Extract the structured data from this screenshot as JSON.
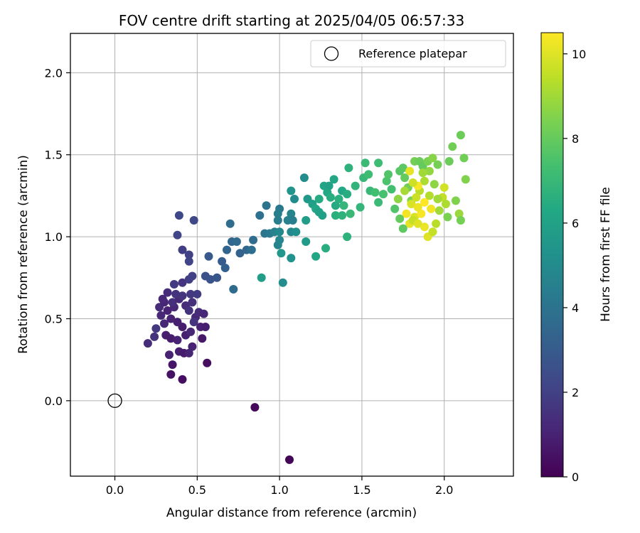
{
  "chart_data": {
    "type": "scatter",
    "title": "FOV centre drift starting at 2025/04/05 06:57:33",
    "xlabel": "Angular distance from reference (arcmin)",
    "ylabel": "Rotation from reference (arcmin)",
    "xlim": [
      -0.27,
      2.42
    ],
    "ylim": [
      -0.46,
      2.24
    ],
    "x_ticks": [
      0.0,
      0.5,
      1.0,
      1.5,
      2.0
    ],
    "x_tick_labels": [
      "0.0",
      "0.5",
      "1.0",
      "1.5",
      "2.0"
    ],
    "y_ticks": [
      0.0,
      0.5,
      1.0,
      1.5,
      2.0
    ],
    "y_tick_labels": [
      "0.0",
      "0.5",
      "1.0",
      "1.5",
      "2.0"
    ],
    "grid": true,
    "legend": {
      "placement": "top-right",
      "entries": [
        {
          "label": "Reference platepar",
          "marker": "open-circle"
        }
      ]
    },
    "reference_point": {
      "x": 0.0,
      "y": 0.0
    },
    "colorbar": {
      "label": "Hours from first FF file",
      "colormap": "viridis",
      "range": [
        0,
        10.5
      ],
      "ticks": [
        0,
        2,
        4,
        6,
        8,
        10
      ],
      "tick_labels": [
        "0",
        "2",
        "4",
        "6",
        "8",
        "10"
      ]
    },
    "points": [
      [
        1.06,
        -0.36,
        0.1
      ],
      [
        0.85,
        -0.04,
        0.2
      ],
      [
        0.41,
        0.13,
        0.4
      ],
      [
        0.34,
        0.16,
        0.5
      ],
      [
        0.35,
        0.22,
        0.6
      ],
      [
        0.56,
        0.23,
        0.4
      ],
      [
        0.33,
        0.28,
        1.0
      ],
      [
        0.39,
        0.3,
        0.9
      ],
      [
        0.42,
        0.29,
        0.8
      ],
      [
        0.47,
        0.33,
        1.0
      ],
      [
        0.45,
        0.29,
        1.1
      ],
      [
        0.53,
        0.38,
        0.7
      ],
      [
        0.2,
        0.35,
        1.3
      ],
      [
        0.24,
        0.39,
        1.5
      ],
      [
        0.25,
        0.44,
        1.7
      ],
      [
        0.31,
        0.4,
        0.9
      ],
      [
        0.34,
        0.38,
        0.8
      ],
      [
        0.38,
        0.37,
        1.0
      ],
      [
        0.43,
        0.4,
        0.9
      ],
      [
        0.46,
        0.42,
        1.1
      ],
      [
        0.41,
        0.45,
        0.8
      ],
      [
        0.38,
        0.48,
        0.9
      ],
      [
        0.34,
        0.5,
        1.0
      ],
      [
        0.3,
        0.47,
        1.1
      ],
      [
        0.28,
        0.52,
        1.2
      ],
      [
        0.32,
        0.55,
        1.0
      ],
      [
        0.36,
        0.57,
        1.2
      ],
      [
        0.27,
        0.57,
        1.3
      ],
      [
        0.3,
        0.6,
        1.1
      ],
      [
        0.35,
        0.6,
        1.4
      ],
      [
        0.39,
        0.62,
        1.2
      ],
      [
        0.43,
        0.58,
        1.3
      ],
      [
        0.45,
        0.55,
        1.5
      ],
      [
        0.49,
        0.51,
        1.2
      ],
      [
        0.48,
        0.48,
        1.6
      ],
      [
        0.52,
        0.45,
        1.0
      ],
      [
        0.55,
        0.45,
        0.9
      ],
      [
        0.51,
        0.54,
        1.3
      ],
      [
        0.54,
        0.53,
        1.1
      ],
      [
        0.47,
        0.6,
        1.4
      ],
      [
        0.41,
        0.64,
        1.6
      ],
      [
        0.37,
        0.65,
        1.5
      ],
      [
        0.32,
        0.66,
        1.3
      ],
      [
        0.29,
        0.62,
        1.2
      ],
      [
        0.46,
        0.65,
        1.7
      ],
      [
        0.5,
        0.65,
        1.8
      ],
      [
        0.41,
        0.72,
        1.6
      ],
      [
        0.36,
        0.71,
        1.8
      ],
      [
        0.45,
        0.74,
        1.9
      ],
      [
        0.47,
        0.76,
        2.0
      ],
      [
        0.41,
        0.92,
        1.9
      ],
      [
        0.45,
        0.89,
        2.0
      ],
      [
        0.45,
        0.85,
        2.1
      ],
      [
        0.38,
        1.01,
        2.1
      ],
      [
        0.39,
        1.13,
        2.2
      ],
      [
        0.48,
        1.1,
        2.3
      ],
      [
        0.55,
        0.76,
        2.6
      ],
      [
        0.58,
        0.74,
        2.7
      ],
      [
        0.62,
        0.75,
        2.8
      ],
      [
        0.57,
        0.88,
        2.9
      ],
      [
        0.65,
        0.85,
        3.0
      ],
      [
        0.67,
        0.81,
        3.2
      ],
      [
        0.68,
        0.92,
        3.4
      ],
      [
        0.71,
        0.97,
        3.5
      ],
      [
        0.74,
        0.97,
        3.6
      ],
      [
        0.76,
        0.9,
        3.3
      ],
      [
        0.7,
        1.08,
        3.7
      ],
      [
        0.72,
        0.68,
        3.6
      ],
      [
        0.8,
        0.92,
        3.5
      ],
      [
        0.84,
        0.98,
        3.7
      ],
      [
        0.88,
        1.13,
        3.9
      ],
      [
        0.92,
        1.19,
        4.0
      ],
      [
        0.91,
        1.02,
        4.1
      ],
      [
        0.94,
        1.02,
        4.3
      ],
      [
        0.97,
        1.03,
        4.6
      ],
      [
        0.99,
        1.1,
        4.4
      ],
      [
        1.0,
        1.17,
        4.2
      ],
      [
        0.99,
        1.14,
        4.5
      ],
      [
        1.0,
        1.03,
        4.9
      ],
      [
        0.99,
        0.95,
        4.7
      ],
      [
        1.0,
        0.98,
        4.8
      ],
      [
        1.01,
        0.9,
        5.5
      ],
      [
        1.05,
        1.1,
        4.6
      ],
      [
        1.07,
        1.14,
        4.7
      ],
      [
        1.08,
        1.1,
        4.5
      ],
      [
        1.07,
        1.03,
        4.9
      ],
      [
        1.1,
        1.03,
        5.2
      ],
      [
        1.07,
        1.28,
        5.4
      ],
      [
        1.09,
        1.23,
        5.0
      ],
      [
        1.07,
        0.87,
        5.3
      ],
      [
        1.02,
        0.72,
        5.1
      ],
      [
        0.89,
        0.75,
        5.8
      ],
      [
        1.15,
        1.36,
        5.1
      ],
      [
        1.16,
        1.1,
        5.8
      ],
      [
        1.16,
        0.97,
        5.7
      ],
      [
        1.17,
        1.23,
        5.6
      ],
      [
        1.2,
        1.2,
        5.9
      ],
      [
        1.22,
        1.17,
        6.2
      ],
      [
        1.24,
        1.15,
        6.0
      ],
      [
        1.26,
        1.13,
        5.9
      ],
      [
        1.24,
        1.23,
        6.4
      ],
      [
        1.27,
        1.31,
        6.1
      ],
      [
        1.29,
        1.27,
        6.3
      ],
      [
        1.31,
        1.24,
        6.5
      ],
      [
        1.3,
        1.31,
        6.0
      ],
      [
        1.33,
        1.35,
        6.2
      ],
      [
        1.34,
        1.19,
        6.4
      ],
      [
        1.36,
        1.23,
        6.6
      ],
      [
        1.38,
        1.28,
        6.3
      ],
      [
        1.34,
        1.13,
        6.6
      ],
      [
        1.38,
        1.13,
        6.7
      ],
      [
        1.39,
        1.19,
        6.9
      ],
      [
        1.41,
        1.26,
        6.5
      ],
      [
        1.42,
        1.42,
        6.7
      ],
      [
        1.43,
        1.14,
        7.0
      ],
      [
        1.46,
        1.31,
        6.8
      ],
      [
        1.51,
        1.36,
        7.0
      ],
      [
        1.52,
        1.45,
        7.1
      ],
      [
        1.54,
        1.38,
        7.2
      ],
      [
        1.55,
        1.28,
        7.0
      ],
      [
        1.6,
        1.45,
        7.2
      ],
      [
        1.58,
        1.27,
        7.3
      ],
      [
        1.6,
        1.21,
        7.1
      ],
      [
        1.63,
        1.26,
        7.4
      ],
      [
        1.65,
        1.34,
        7.5
      ],
      [
        1.66,
        1.38,
        7.6
      ],
      [
        1.68,
        1.29,
        7.3
      ],
      [
        1.7,
        1.17,
        7.6
      ],
      [
        1.73,
        1.4,
        7.7
      ],
      [
        1.75,
        1.42,
        7.8
      ],
      [
        1.76,
        1.36,
        8.0
      ],
      [
        1.78,
        1.3,
        8.2
      ],
      [
        1.8,
        1.22,
        8.4
      ],
      [
        1.82,
        1.46,
        8.3
      ],
      [
        1.85,
        1.46,
        8.1
      ],
      [
        1.87,
        1.43,
        8.0
      ],
      [
        1.9,
        1.46,
        8.4
      ],
      [
        1.93,
        1.48,
        8.6
      ],
      [
        1.91,
        1.4,
        8.8
      ],
      [
        1.88,
        1.34,
        9.2
      ],
      [
        1.85,
        1.28,
        9.4
      ],
      [
        1.83,
        1.24,
        9.7
      ],
      [
        1.8,
        1.2,
        9.9
      ],
      [
        1.77,
        1.14,
        10.3
      ],
      [
        1.79,
        1.08,
        10.1
      ],
      [
        1.82,
        1.12,
        9.9
      ],
      [
        1.86,
        1.14,
        10.4
      ],
      [
        1.88,
        1.06,
        10.2
      ],
      [
        1.9,
        1.0,
        10.0
      ],
      [
        1.93,
        1.03,
        9.6
      ],
      [
        1.95,
        1.08,
        9.4
      ],
      [
        1.97,
        1.16,
        9.0
      ],
      [
        1.99,
        1.24,
        9.5
      ],
      [
        2.0,
        1.3,
        9.8
      ],
      [
        2.01,
        1.2,
        9.2
      ],
      [
        2.02,
        1.12,
        8.4
      ],
      [
        2.03,
        1.46,
        8.1
      ],
      [
        2.05,
        1.55,
        8.2
      ],
      [
        2.07,
        1.22,
        8.5
      ],
      [
        2.09,
        1.14,
        8.9
      ],
      [
        2.1,
        1.1,
        8.3
      ],
      [
        2.1,
        1.62,
        8.1
      ],
      [
        2.12,
        1.48,
        8.2
      ],
      [
        2.13,
        1.35,
        8.5
      ],
      [
        1.96,
        1.44,
        8.3
      ],
      [
        1.73,
        1.11,
        8.0
      ],
      [
        1.75,
        1.05,
        7.9
      ],
      [
        1.84,
        1.31,
        10.4
      ],
      [
        1.79,
        1.4,
        10.1
      ],
      [
        1.81,
        1.33,
        9.7
      ],
      [
        1.87,
        1.39,
        9.0
      ],
      [
        1.91,
        1.25,
        9.3
      ],
      [
        1.84,
        1.18,
        10.2
      ],
      [
        1.96,
        1.23,
        9.0
      ],
      [
        1.94,
        1.32,
        8.7
      ],
      [
        1.72,
        1.23,
        8.7
      ],
      [
        1.76,
        1.28,
        9.1
      ],
      [
        1.92,
        1.17,
        10.3
      ],
      [
        1.88,
        1.21,
        10.5
      ],
      [
        1.81,
        1.1,
        9.6
      ],
      [
        1.84,
        1.08,
        10.0
      ],
      [
        1.49,
        1.18,
        6.9
      ],
      [
        1.41,
        1.0,
        6.7
      ],
      [
        1.28,
        0.93,
        6.5
      ],
      [
        1.22,
        0.88,
        6.2
      ],
      [
        0.83,
        0.92,
        3.8
      ]
    ]
  }
}
